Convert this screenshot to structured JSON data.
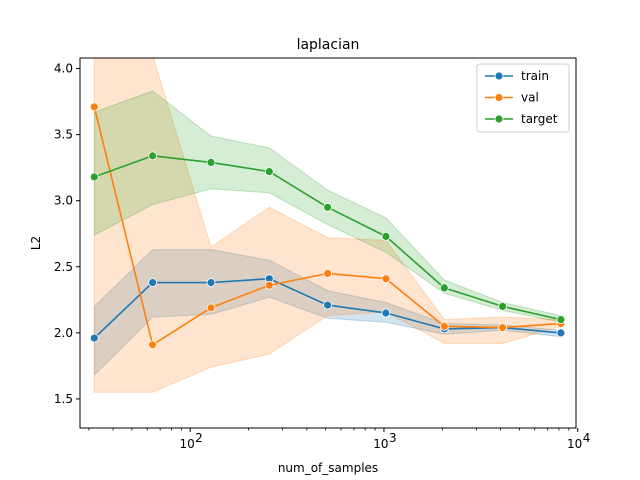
{
  "chart_data": {
    "type": "line",
    "title": "laplacian",
    "xlabel": "num_of_samples",
    "ylabel": "L2",
    "xscale": "log",
    "xlim": [
      27,
      9800
    ],
    "ylim": [
      1.28,
      4.08
    ],
    "yticks": [
      1.5,
      2.0,
      2.5,
      3.0,
      3.5,
      4.0
    ],
    "ytick_labels": [
      "1.5",
      "2.0",
      "2.5",
      "3.0",
      "3.5",
      "4.0"
    ],
    "xticks": [
      100,
      1000,
      10000
    ],
    "xtick_labels": [
      "10",
      "10",
      "10"
    ],
    "xtick_exponents": [
      "2",
      "3",
      "4"
    ],
    "legend_position": "upper-right",
    "x": [
      32,
      64,
      128,
      256,
      512,
      1024,
      2048,
      4096,
      8192
    ],
    "series": [
      {
        "name": "train",
        "color": "#1f77b4",
        "values": [
          1.96,
          2.38,
          2.38,
          2.41,
          2.21,
          2.15,
          2.03,
          2.04,
          2.0
        ],
        "band_low": [
          1.68,
          2.12,
          2.14,
          2.27,
          2.11,
          2.08,
          1.99,
          2.02,
          1.97
        ],
        "band_high": [
          2.2,
          2.63,
          2.63,
          2.55,
          2.32,
          2.23,
          2.07,
          2.06,
          2.02
        ]
      },
      {
        "name": "val",
        "color": "#ff7f0e",
        "values": [
          3.71,
          1.91,
          2.19,
          2.36,
          2.45,
          2.41,
          2.05,
          2.04,
          2.07
        ],
        "band_low": [
          1.55,
          1.55,
          1.74,
          1.84,
          2.13,
          2.16,
          1.92,
          1.92,
          2.05
        ],
        "band_high": [
          4.1,
          4.1,
          2.65,
          2.95,
          2.72,
          2.7,
          2.1,
          2.12,
          2.1
        ]
      },
      {
        "name": "target",
        "color": "#2ca02c",
        "values": [
          3.18,
          3.34,
          3.29,
          3.22,
          2.95,
          2.73,
          2.34,
          2.2,
          2.1
        ],
        "band_low": [
          2.74,
          2.97,
          3.09,
          3.06,
          2.82,
          2.61,
          2.3,
          2.17,
          2.08
        ],
        "band_high": [
          3.67,
          3.83,
          3.49,
          3.4,
          3.08,
          2.87,
          2.4,
          2.23,
          2.13
        ]
      }
    ]
  }
}
